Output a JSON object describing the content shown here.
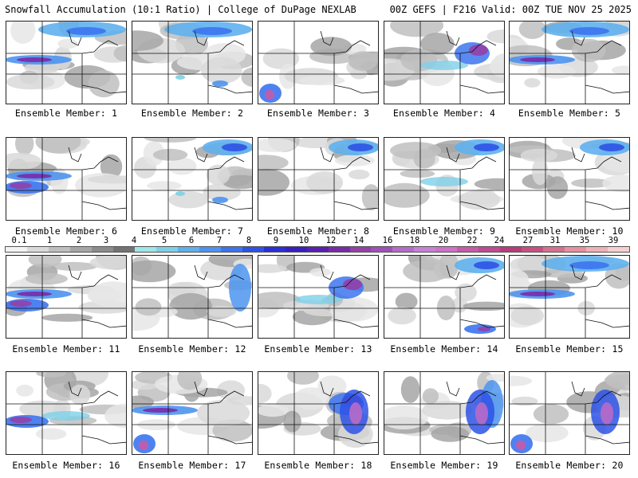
{
  "header": {
    "left_title": "Snowfall Accumulation (10:1 Ratio) | College of DuPage NEXLAB",
    "right_title": "00Z GEFS | F216 Valid: 00Z TUE NOV 25 2025"
  },
  "legend": {
    "labels": [
      "0.1",
      "1",
      "2",
      "3",
      "4",
      "5",
      "6",
      "7",
      "8",
      "9",
      "10",
      "12",
      "14",
      "16",
      "18",
      "20",
      "22",
      "24",
      "27",
      "31",
      "35",
      "39"
    ],
    "colors": [
      "#f2f2f2",
      "#d9d9d9",
      "#bfbfbf",
      "#a6a6a6",
      "#8c8c8c",
      "#737373",
      "#9fe6e6",
      "#7ed0e8",
      "#5fb0ee",
      "#4c94f0",
      "#3c74ee",
      "#2e52e6",
      "#2a2fd8",
      "#3a1fc0",
      "#5a1fb0",
      "#7a2aa8",
      "#9440a8",
      "#a050b8",
      "#b86ac8",
      "#c880d6",
      "#d070c8",
      "#c85aa8",
      "#c04a92",
      "#b83c7c",
      "#c85080",
      "#d87090",
      "#e890a0",
      "#f0b0b8",
      "#f6d0d0"
    ]
  },
  "members": [
    {
      "label": "Ensemble Member: 1"
    },
    {
      "label": "Ensemble Member: 2"
    },
    {
      "label": "Ensemble Member: 3"
    },
    {
      "label": "Ensemble Member: 4"
    },
    {
      "label": "Ensemble Member: 5"
    },
    {
      "label": "Ensemble Member: 6"
    },
    {
      "label": "Ensemble Member: 7"
    },
    {
      "label": "Ensemble Member: 8"
    },
    {
      "label": "Ensemble Member: 9"
    },
    {
      "label": "Ensemble Member: 10"
    },
    {
      "label": "Ensemble Member: 11"
    },
    {
      "label": "Ensemble Member: 12"
    },
    {
      "label": "Ensemble Member: 13"
    },
    {
      "label": "Ensemble Member: 14"
    },
    {
      "label": "Ensemble Member: 15"
    },
    {
      "label": "Ensemble Member: 16"
    },
    {
      "label": "Ensemble Member: 17"
    },
    {
      "label": "Ensemble Member: 18"
    },
    {
      "label": "Ensemble Member: 19"
    },
    {
      "label": "Ensemble Member: 20"
    }
  ]
}
